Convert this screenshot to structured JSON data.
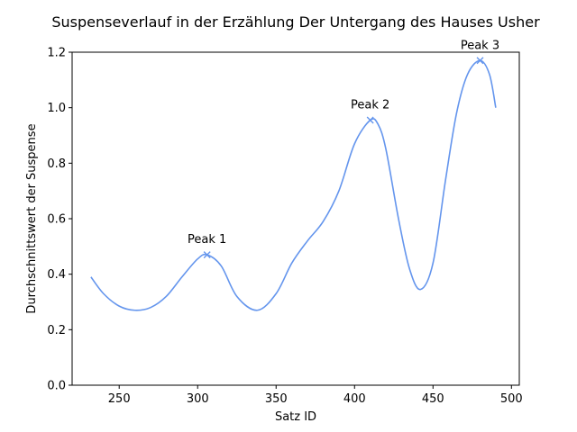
{
  "chart_data": {
    "type": "line",
    "title": "Suspenseverlauf in der Erzählung Der Untergang des Hauses Usher",
    "xlabel": "Satz ID",
    "ylabel": "Durchschnittswert der Suspense",
    "xlim": [
      220,
      505
    ],
    "ylim": [
      0.0,
      1.2
    ],
    "x_ticks": [
      "250",
      "300",
      "350",
      "400",
      "450",
      "500"
    ],
    "x_tick_values": [
      250,
      300,
      350,
      400,
      450,
      500
    ],
    "y_ticks": [
      "0.0",
      "0.2",
      "0.4",
      "0.6",
      "0.8",
      "1.0",
      "1.2"
    ],
    "y_tick_values": [
      0.0,
      0.2,
      0.4,
      0.6,
      0.8,
      1.0,
      1.2
    ],
    "color": "#6495ed",
    "series": [
      {
        "x": [
          232,
          240,
          250,
          260,
          270,
          280,
          290,
          300,
          306,
          315,
          325,
          338,
          350,
          360,
          370,
          380,
          390,
          400,
          410,
          415,
          420,
          428,
          435,
          442,
          450,
          458,
          465,
          472,
          480,
          486,
          490
        ],
        "values": [
          0.39,
          0.33,
          0.285,
          0.27,
          0.28,
          0.32,
          0.39,
          0.455,
          0.47,
          0.43,
          0.32,
          0.27,
          0.33,
          0.44,
          0.52,
          0.59,
          0.7,
          0.87,
          0.955,
          0.94,
          0.85,
          0.6,
          0.42,
          0.345,
          0.44,
          0.74,
          0.98,
          1.12,
          1.17,
          1.12,
          1.0
        ]
      }
    ],
    "annotations": [
      {
        "label": "Peak 1",
        "x": 306,
        "y": 0.47
      },
      {
        "label": "Peak 2",
        "x": 410,
        "y": 0.955
      },
      {
        "label": "Peak 3",
        "x": 480,
        "y": 1.17
      }
    ]
  }
}
